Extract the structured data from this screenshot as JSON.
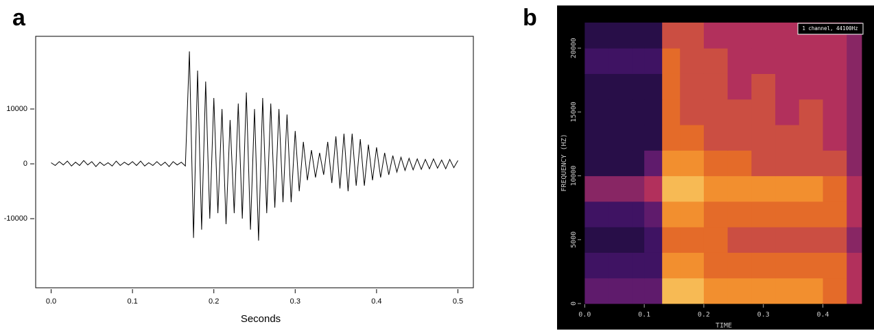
{
  "chart_data": [
    {
      "type": "line",
      "panel_label": "a",
      "xlabel": "Seconds",
      "color": "#000000",
      "xlim": [
        -0.019,
        0.519
      ],
      "ylim": [
        -22600,
        23250
      ],
      "xticks": [
        {
          "value": 0,
          "label": "0.0"
        },
        0.1,
        0.2,
        0.3,
        0.4,
        0.5
      ],
      "yticks": [
        -10000,
        0,
        10000
      ],
      "x": [
        0,
        0.005,
        0.01,
        0.015,
        0.02,
        0.025,
        0.03,
        0.035,
        0.04,
        0.045,
        0.05,
        0.055,
        0.06,
        0.065,
        0.07,
        0.075,
        0.08,
        0.085,
        0.09,
        0.095,
        0.1,
        0.105,
        0.11,
        0.115,
        0.12,
        0.125,
        0.13,
        0.135,
        0.14,
        0.145,
        0.15,
        0.155,
        0.16,
        0.165,
        0.17,
        0.175,
        0.18,
        0.185,
        0.19,
        0.195,
        0.2,
        0.205,
        0.21,
        0.215,
        0.22,
        0.225,
        0.23,
        0.235,
        0.24,
        0.245,
        0.25,
        0.255,
        0.26,
        0.265,
        0.27,
        0.275,
        0.28,
        0.285,
        0.29,
        0.295,
        0.3,
        0.305,
        0.31,
        0.315,
        0.32,
        0.325,
        0.33,
        0.335,
        0.34,
        0.345,
        0.35,
        0.355,
        0.36,
        0.365,
        0.37,
        0.375,
        0.38,
        0.385,
        0.39,
        0.395,
        0.4,
        0.405,
        0.41,
        0.415,
        0.42,
        0.425,
        0.43,
        0.435,
        0.44,
        0.445,
        0.45,
        0.455,
        0.46,
        0.465,
        0.47,
        0.475,
        0.48,
        0.485,
        0.49,
        0.495,
        0.5
      ],
      "values": [
        200,
        -300,
        400,
        -200,
        500,
        -400,
        300,
        -300,
        600,
        -200,
        400,
        -500,
        300,
        -300,
        200,
        -400,
        500,
        -300,
        300,
        -200,
        400,
        -300,
        500,
        -400,
        200,
        -300,
        400,
        -300,
        300,
        -500,
        400,
        -200,
        300,
        -400,
        20500,
        -13500,
        17000,
        -12000,
        15000,
        -10000,
        12000,
        -9000,
        10000,
        -11000,
        8000,
        -9000,
        11000,
        -10000,
        13000,
        -12000,
        10000,
        -14000,
        12000,
        -9000,
        11000,
        -8000,
        10000,
        -7000,
        9000,
        -7000,
        6000,
        -5000,
        4000,
        -3000,
        2500,
        -2500,
        2000,
        -2000,
        4000,
        -3500,
        5000,
        -4500,
        5500,
        -5000,
        5500,
        -4000,
        4500,
        -4000,
        3500,
        -3000,
        3000,
        -2500,
        2000,
        -2000,
        1500,
        -1500,
        1200,
        -1200,
        1000,
        -1100,
        900,
        -1000,
        800,
        -900,
        900,
        -800,
        700,
        -900,
        800,
        -700,
        600
      ]
    },
    {
      "type": "heatmap",
      "panel_label": "b",
      "xlabel": "TIME",
      "ylabel": "FREQUENCY (HZ)",
      "annotation": "1 channel, 44100Hz",
      "xlim": [
        -0.005,
        0.472
      ],
      "ylim": [
        0,
        22050
      ],
      "xticks": [
        {
          "value": 0,
          "label": "0.0"
        },
        0.1,
        0.2,
        0.3,
        0.4
      ],
      "yticks": [
        0,
        5000,
        10000,
        15000,
        20000
      ],
      "x_edges": [
        0,
        0.04,
        0.08,
        0.1,
        0.13,
        0.16,
        0.2,
        0.24,
        0.28,
        0.32,
        0.36,
        0.4,
        0.44,
        0.465
      ],
      "y_edges": [
        0,
        2000,
        4000,
        6000,
        8000,
        10000,
        12000,
        14000,
        16000,
        18000,
        20000,
        22000
      ],
      "zlim": [
        0,
        10
      ],
      "colors": [
        "#12082e",
        "#4a1670",
        "#b2305c",
        "#f07a1c",
        "#fce47a"
      ],
      "z": [
        [
          3,
          3,
          3,
          3,
          9,
          9,
          8,
          8,
          8,
          8,
          8,
          7,
          5
        ],
        [
          2,
          2,
          2,
          2,
          8,
          8,
          7,
          7,
          7,
          7,
          7,
          7,
          5
        ],
        [
          1,
          1,
          1,
          2,
          7,
          7,
          7,
          6,
          6,
          6,
          6,
          6,
          4
        ],
        [
          2,
          2,
          2,
          3,
          8,
          8,
          7,
          7,
          7,
          7,
          7,
          7,
          5
        ],
        [
          4,
          4,
          4,
          5,
          9,
          9,
          8,
          8,
          8,
          8,
          8,
          7,
          5
        ],
        [
          1,
          1,
          1,
          3,
          8,
          8,
          7,
          7,
          6,
          6,
          6,
          6,
          4
        ],
        [
          1,
          1,
          1,
          1,
          7,
          7,
          6,
          6,
          6,
          6,
          6,
          5,
          4
        ],
        [
          1,
          1,
          1,
          1,
          7,
          6,
          6,
          6,
          6,
          5,
          6,
          5,
          4
        ],
        [
          1,
          1,
          1,
          1,
          7,
          6,
          6,
          5,
          6,
          5,
          5,
          5,
          4
        ],
        [
          2,
          2,
          2,
          2,
          7,
          6,
          6,
          5,
          5,
          5,
          5,
          5,
          4
        ],
        [
          1,
          1,
          1,
          1,
          6,
          6,
          5,
          5,
          5,
          5,
          5,
          5,
          4
        ]
      ]
    }
  ]
}
